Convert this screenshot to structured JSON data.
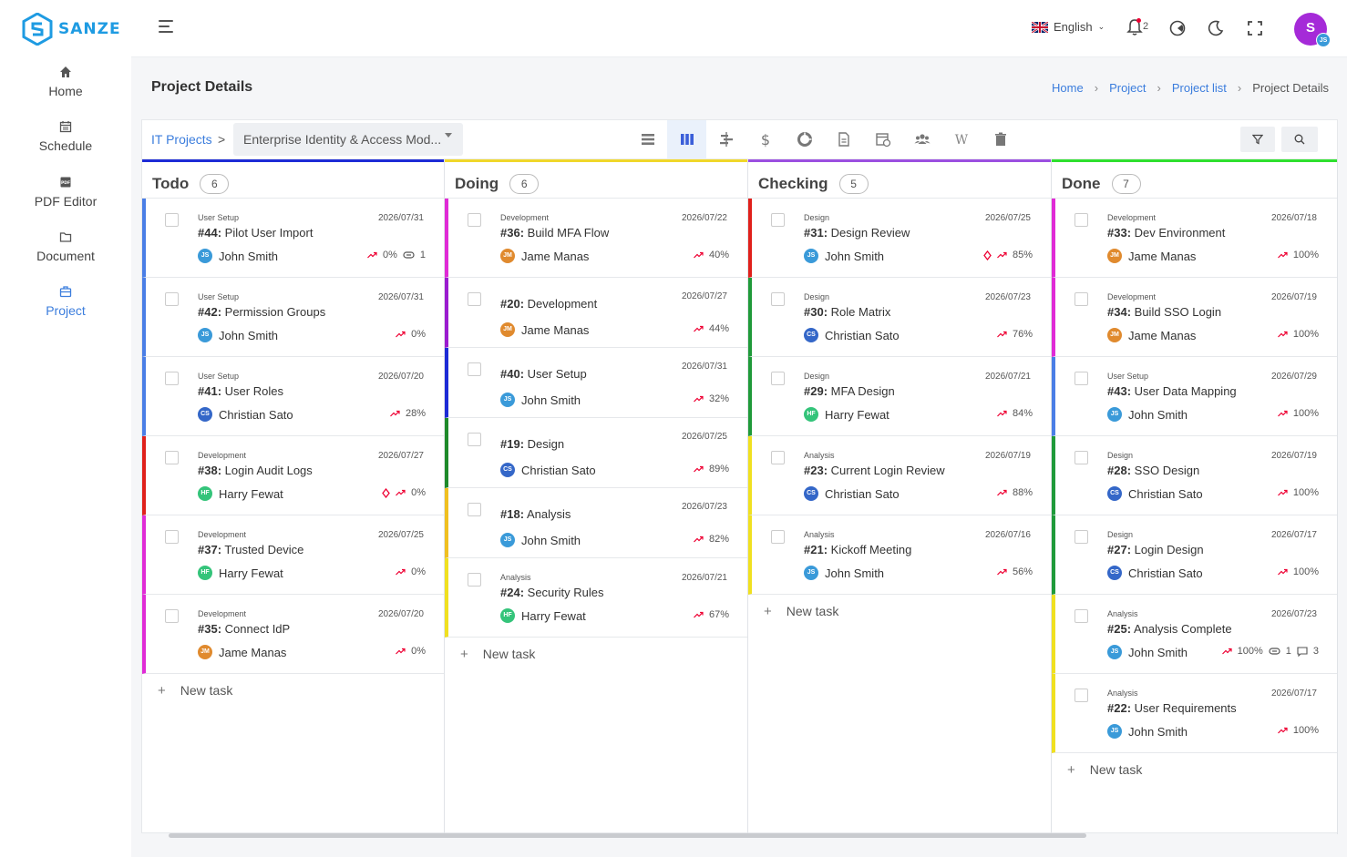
{
  "brand": {
    "name": "SANZE",
    "color": "#1e9be2"
  },
  "sidebar": {
    "items": [
      {
        "label": "Home",
        "icon": "home-icon"
      },
      {
        "label": "Schedule",
        "icon": "calendar-icon"
      },
      {
        "label": "PDF Editor",
        "icon": "pdf-icon",
        "icon_text": "PDF"
      },
      {
        "label": "Document",
        "icon": "folder-icon"
      },
      {
        "label": "Project",
        "icon": "briefcase-icon",
        "active": true
      }
    ]
  },
  "topbar": {
    "language": "English",
    "notifications": "2",
    "user_initial": "S",
    "user_sub_initials": "JS"
  },
  "page": {
    "title": "Project Details"
  },
  "breadcrumb": {
    "home": "Home",
    "project": "Project",
    "project_list": "Project list",
    "current": "Project Details"
  },
  "toolbar": {
    "root_link": "IT Projects",
    "separator": ">",
    "project_select": "Enterprise Identity & Access Mod...",
    "views": [
      "list-view-icon",
      "kanban-view-icon",
      "gantt-view-icon",
      "cost-icon",
      "chart-icon",
      "document-icon",
      "calendar-view-icon",
      "members-icon",
      "wiki-icon",
      "trash-icon"
    ]
  },
  "new_task_label": "New task",
  "columns": [
    {
      "title": "Todo",
      "count": "6",
      "color": "#1d2bd6",
      "cards": [
        {
          "cat": "User Setup",
          "date": "2026/07/31",
          "num": "#44:",
          "title": "Pilot User Import",
          "initials": "JS",
          "assignee": "John Smith",
          "progress": "0%",
          "attachments": "1",
          "bar": "#4a7ee6"
        },
        {
          "cat": "User Setup",
          "date": "2026/07/31",
          "num": "#42:",
          "title": "Permission Groups",
          "initials": "JS",
          "assignee": "John Smith",
          "progress": "0%",
          "bar": "#4a7ee6"
        },
        {
          "cat": "User Setup",
          "date": "2026/07/20",
          "num": "#41:",
          "title": "User Roles",
          "initials": "CS",
          "assignee": "Christian Sato",
          "progress": "28%",
          "bar": "#4a7ee6"
        },
        {
          "cat": "Development",
          "date": "2026/07/27",
          "num": "#38:",
          "title": "Login Audit Logs",
          "initials": "HF",
          "assignee": "Harry Fewat",
          "progress": "0%",
          "flag": true,
          "bar": "#e0201b"
        },
        {
          "cat": "Development",
          "date": "2026/07/25",
          "num": "#37:",
          "title": "Trusted Device",
          "initials": "HF",
          "assignee": "Harry Fewat",
          "progress": "0%",
          "bar": "#e02bd6"
        },
        {
          "cat": "Development",
          "date": "2026/07/20",
          "num": "#35:",
          "title": "Connect IdP",
          "initials": "JM",
          "assignee": "Jame Manas",
          "progress": "0%",
          "bar": "#e02bd6"
        }
      ]
    },
    {
      "title": "Doing",
      "count": "6",
      "color": "#f0d72a",
      "cards": [
        {
          "cat": "Development",
          "date": "2026/07/22",
          "num": "#36:",
          "title": "Build MFA Flow",
          "initials": "JM",
          "assignee": "Jame Manas",
          "progress": "40%",
          "bar": "#e02bd6"
        },
        {
          "cat": "",
          "date": "2026/07/27",
          "num": "#20:",
          "title": "Development",
          "initials": "JM",
          "assignee": "Jame Manas",
          "progress": "44%",
          "bar": "#9b1ccf"
        },
        {
          "cat": "",
          "date": "2026/07/31",
          "num": "#40:",
          "title": "User Setup",
          "initials": "JS",
          "assignee": "John Smith",
          "progress": "32%",
          "bar": "#1d2bd6"
        },
        {
          "cat": "",
          "date": "2026/07/25",
          "num": "#19:",
          "title": "Design",
          "initials": "CS",
          "assignee": "Christian Sato",
          "progress": "89%",
          "bar": "#1f8a2a"
        },
        {
          "cat": "",
          "date": "2026/07/23",
          "num": "#18:",
          "title": "Analysis",
          "initials": "JS",
          "assignee": "John Smith",
          "progress": "82%",
          "bar": "#f0c020"
        },
        {
          "cat": "Analysis",
          "date": "2026/07/21",
          "num": "#24:",
          "title": "Security Rules",
          "initials": "HF",
          "assignee": "Harry Fewat",
          "progress": "67%",
          "bar": "#f0e020"
        }
      ]
    },
    {
      "title": "Checking",
      "count": "5",
      "color": "#9b4fe0",
      "cards": [
        {
          "cat": "Design",
          "date": "2026/07/25",
          "num": "#31:",
          "title": "Design Review",
          "initials": "JS",
          "assignee": "John Smith",
          "progress": "85%",
          "flag": true,
          "bar": "#e0201b"
        },
        {
          "cat": "Design",
          "date": "2026/07/23",
          "num": "#30:",
          "title": "Role Matrix",
          "initials": "CS",
          "assignee": "Christian Sato",
          "progress": "76%",
          "bar": "#1f9a3a"
        },
        {
          "cat": "Design",
          "date": "2026/07/21",
          "num": "#29:",
          "title": "MFA Design",
          "initials": "HF",
          "assignee": "Harry Fewat",
          "progress": "84%",
          "bar": "#1f9a3a"
        },
        {
          "cat": "Analysis",
          "date": "2026/07/19",
          "num": "#23:",
          "title": "Current Login Review",
          "initials": "CS",
          "assignee": "Christian Sato",
          "progress": "88%",
          "bar": "#f0e020"
        },
        {
          "cat": "Analysis",
          "date": "2026/07/16",
          "num": "#21:",
          "title": "Kickoff Meeting",
          "initials": "JS",
          "assignee": "John Smith",
          "progress": "56%",
          "bar": "#f0e020"
        }
      ]
    },
    {
      "title": "Done",
      "count": "7",
      "color": "#2ee02e",
      "cards": [
        {
          "cat": "Development",
          "date": "2026/07/18",
          "num": "#33:",
          "title": "Dev Environment",
          "initials": "JM",
          "assignee": "Jame Manas",
          "progress": "100%",
          "bar": "#e02bd6"
        },
        {
          "cat": "Development",
          "date": "2026/07/19",
          "num": "#34:",
          "title": "Build SSO Login",
          "initials": "JM",
          "assignee": "Jame Manas",
          "progress": "100%",
          "bar": "#e02bd6"
        },
        {
          "cat": "User Setup",
          "date": "2026/07/29",
          "num": "#43:",
          "title": "User Data Mapping",
          "initials": "JS",
          "assignee": "John Smith",
          "progress": "100%",
          "bar": "#4a7ee6"
        },
        {
          "cat": "Design",
          "date": "2026/07/19",
          "num": "#28:",
          "title": "SSO Design",
          "initials": "CS",
          "assignee": "Christian Sato",
          "progress": "100%",
          "bar": "#1f9a3a"
        },
        {
          "cat": "Design",
          "date": "2026/07/17",
          "num": "#27:",
          "title": "Login Design",
          "initials": "CS",
          "assignee": "Christian Sato",
          "progress": "100%",
          "bar": "#1f9a3a"
        },
        {
          "cat": "Analysis",
          "date": "2026/07/23",
          "num": "#25:",
          "title": "Analysis Complete",
          "initials": "JS",
          "assignee": "John Smith",
          "progress": "100%",
          "attachments": "1",
          "comments": "3",
          "bar": "#f0e020"
        },
        {
          "cat": "Analysis",
          "date": "2026/07/17",
          "num": "#22:",
          "title": "User Requirements",
          "initials": "JS",
          "assignee": "John Smith",
          "progress": "100%",
          "bar": "#f0e020"
        }
      ]
    }
  ],
  "avatar_colors": {
    "JS": "#3a9ad9",
    "CS": "#3467c8",
    "HF": "#34c47a",
    "JM": "#e08a2e"
  }
}
